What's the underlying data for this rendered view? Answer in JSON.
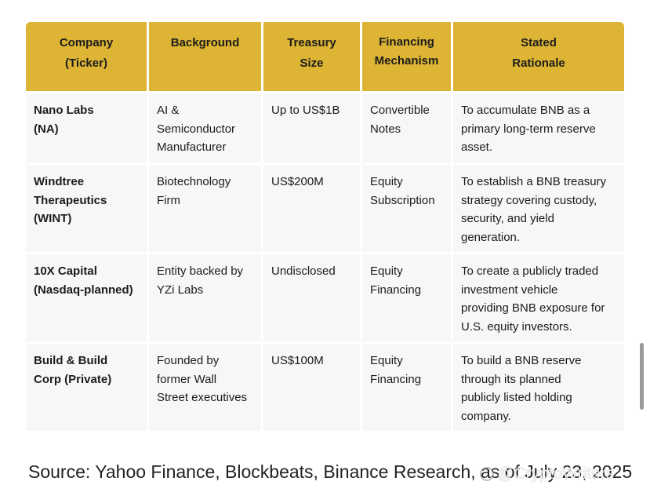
{
  "table": {
    "headers": [
      "Company\n(Ticker)",
      "Background",
      "Treasury\nSize",
      "Financing\nMechanism",
      "Stated\nRationale"
    ],
    "rows": [
      [
        "Nano Labs\n(NA)",
        "AI &\nSemiconductor\nManufacturer",
        "Up to US$1B",
        "Convertible\nNotes",
        "To accumulate BNB as a\nprimary long-term reserve\nasset."
      ],
      [
        "Windtree\nTherapeutics\n(WINT)",
        "Biotechnology\nFirm",
        "US$200M",
        "Equity\nSubscription",
        "To establish a BNB treasury\nstrategy covering custody,\nsecurity, and yield\ngeneration."
      ],
      [
        "10X Capital\n(Nasdaq-planned)",
        "Entity backed by\nYZi Labs",
        "Undisclosed",
        "Equity\nFinancing",
        "To create a publicly traded\ninvestment vehicle\nproviding BNB exposure for\nU.S. equity investors."
      ],
      [
        "Build & Build\nCorp (Private)",
        "Founded by\nformer Wall\nStreet executives",
        "US$100M",
        "Equity\nFinancing",
        "To build a BNB reserve\nthrough its planned\npublicly listed holding\ncompany."
      ]
    ]
  },
  "source": "Source: Yahoo Finance, Blockbeats, Binance Research, as of July 23, 2025",
  "watermark": "@CryptoWriters",
  "colors": {
    "header_bg": "#ddb433",
    "cell_bg": "#f6f7f9"
  }
}
